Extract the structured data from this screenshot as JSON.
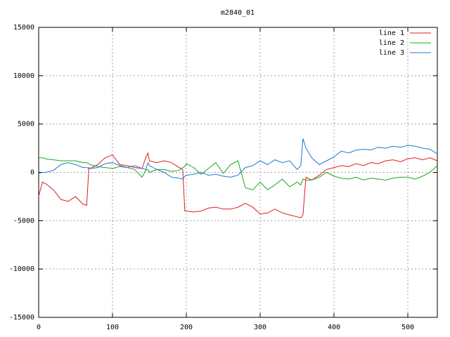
{
  "chart_data": {
    "type": "line",
    "title": "m2840_01",
    "x": [
      0,
      5,
      10,
      20,
      30,
      40,
      50,
      60,
      65,
      68,
      70,
      80,
      90,
      100,
      110,
      120,
      130,
      140,
      145,
      148,
      150,
      160,
      170,
      180,
      190,
      195,
      198,
      200,
      210,
      220,
      230,
      240,
      250,
      260,
      270,
      280,
      290,
      300,
      310,
      320,
      330,
      340,
      350,
      355,
      358,
      362,
      370,
      380,
      390,
      400,
      410,
      420,
      430,
      440,
      450,
      460,
      470,
      480,
      490,
      500,
      510,
      520,
      530,
      540
    ],
    "series": [
      {
        "name": "line 1",
        "color": "#e41a1c",
        "values": [
          -2500,
          -1000,
          -1200,
          -1800,
          -2800,
          -3000,
          -2500,
          -3300,
          -3400,
          500,
          400,
          800,
          1500,
          1800,
          800,
          700,
          500,
          400,
          1500,
          2000,
          1200,
          1000,
          1200,
          1000,
          500,
          300,
          -4000,
          -4000,
          -4100,
          -4000,
          -3700,
          -3600,
          -3800,
          -3800,
          -3600,
          -3200,
          -3600,
          -4300,
          -4200,
          -3800,
          -4200,
          -4400,
          -4600,
          -4700,
          -4400,
          -500,
          -800,
          -300,
          300,
          500,
          700,
          600,
          900,
          700,
          1000,
          900,
          1200,
          1300,
          1100,
          1400,
          1500,
          1300,
          1500,
          1200
        ]
      },
      {
        "name": "line 2",
        "color": "#1ea51e",
        "values": [
          1500,
          1500,
          1400,
          1300,
          1200,
          1200,
          1200,
          1000,
          1000,
          900,
          800,
          600,
          500,
          400,
          600,
          500,
          300,
          -500,
          200,
          300,
          0,
          300,
          300,
          100,
          200,
          500,
          600,
          900,
          500,
          -200,
          400,
          1000,
          -100,
          800,
          1200,
          -1600,
          -1800,
          -1000,
          -1800,
          -1300,
          -700,
          -1500,
          -1000,
          -1300,
          -700,
          -800,
          -800,
          -500,
          0,
          -400,
          -600,
          -700,
          -500,
          -800,
          -600,
          -700,
          -800,
          -600,
          -500,
          -500,
          -700,
          -400,
          0,
          700
        ]
      },
      {
        "name": "line 3",
        "color": "#1f78d4",
        "values": [
          -100,
          0,
          0,
          200,
          800,
          1000,
          800,
          500,
          500,
          400,
          400,
          500,
          900,
          1000,
          700,
          500,
          700,
          400,
          300,
          1000,
          700,
          300,
          0,
          -500,
          -600,
          -700,
          -400,
          -300,
          -200,
          0,
          -300,
          -200,
          -400,
          -500,
          -300,
          500,
          700,
          1200,
          800,
          1300,
          1000,
          1200,
          300,
          700,
          3500,
          2500,
          1500,
          800,
          1200,
          1600,
          2200,
          2000,
          2300,
          2400,
          2300,
          2600,
          2500,
          2700,
          2600,
          2800,
          2700,
          2500,
          2400,
          1900
        ]
      }
    ],
    "xlim": [
      0,
      540
    ],
    "ylim": [
      -15000,
      15000
    ],
    "xticks": [
      0,
      100,
      200,
      300,
      400,
      500
    ],
    "yticks": [
      -15000,
      -10000,
      -5000,
      0,
      5000,
      10000,
      15000
    ],
    "grid": true,
    "legend": "top-right"
  }
}
